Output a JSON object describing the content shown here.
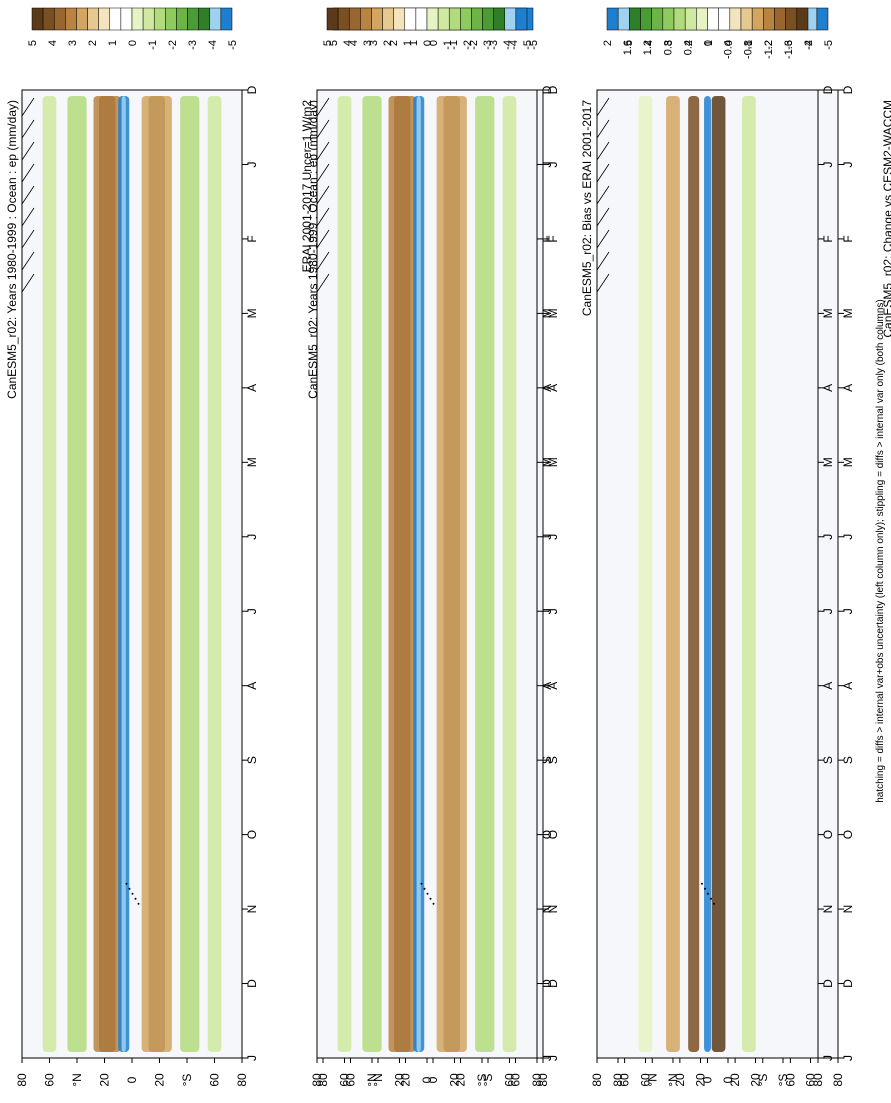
{
  "figure": {
    "footnote": "hatching = diffs > internal var+obs uncertainty (left column only); stippling = diffs > internal var only (both columns)"
  },
  "chart_data": [
    {
      "type": "heatmap",
      "title": "CanESM5_r02: Years 1980-1999 : Ocean : ep (mm/day)",
      "x": [
        "D",
        "J",
        "F",
        "M",
        "A",
        "M",
        "J",
        "J",
        "A",
        "S",
        "O",
        "N",
        "D",
        "J"
      ],
      "y_ticks": [
        "80",
        "60",
        "°N",
        "20",
        "0",
        "20",
        "°S",
        "60",
        "80"
      ],
      "colorbar": [
        "5",
        "4",
        "3",
        "2",
        "1",
        "0",
        "-1",
        "-2",
        "-3",
        "-4",
        "-5"
      ],
      "hatching": true,
      "stippling": true,
      "pattern": "field"
    },
    {
      "type": "heatmap",
      "title": "CanESM5_r02: Years 1980-1999 : Ocean : ep (mm/day)",
      "x": [
        "D",
        "J",
        "F",
        "M",
        "A",
        "M",
        "J",
        "J",
        "A",
        "S",
        "O",
        "N",
        "D",
        "J"
      ],
      "y_ticks": [
        "80",
        "60",
        "°N",
        "20",
        "0",
        "20",
        "°S",
        "60",
        "80"
      ],
      "colorbar": [
        "5",
        "4",
        "3",
        "2",
        "1",
        "0",
        "-1",
        "-2",
        "-3",
        "-4",
        "-5"
      ],
      "hatching": false,
      "stippling": true,
      "pattern": "field"
    },
    {
      "type": "heatmap",
      "title": "ERAI 2001-2017 Uncer=1 W/m2",
      "x": [
        "D",
        "J",
        "F",
        "M",
        "A",
        "M",
        "J",
        "J",
        "A",
        "S",
        "O",
        "N",
        "D",
        "J"
      ],
      "y_ticks": [
        "80",
        "60",
        "°N",
        "20",
        "0",
        "20",
        "°S",
        "60",
        "80"
      ],
      "colorbar": [
        "5",
        "4",
        "3",
        "2",
        "1",
        "0",
        "-1",
        "-2",
        "-3",
        "-4",
        "-5"
      ],
      "hatching": true,
      "stippling": true,
      "pattern": "field"
    },
    {
      "type": "heatmap",
      "title": "CESM2-WACCM",
      "x": [
        "D",
        "J",
        "F",
        "M",
        "A",
        "M",
        "J",
        "J",
        "A",
        "S",
        "O",
        "N",
        "D",
        "J"
      ],
      "y_ticks": [
        "80",
        "60",
        "°N",
        "20",
        "0",
        "20",
        "°S",
        "60",
        "80"
      ],
      "colorbar": [
        "5",
        "4",
        "3",
        "2",
        "1",
        "0",
        "-1",
        "-2",
        "-3",
        "-4",
        "-5"
      ],
      "hatching": false,
      "stippling": true,
      "pattern": "field"
    },
    {
      "type": "heatmap",
      "title": "CanESM5_r02: Bias vs ERAI 2001-2017",
      "x": [
        "D",
        "J",
        "F",
        "M",
        "A",
        "M",
        "J",
        "J",
        "A",
        "S",
        "O",
        "N",
        "D",
        "J"
      ],
      "y_ticks": [
        "80",
        "60",
        "°N",
        "20",
        "0",
        "20",
        "°S",
        "60",
        "80"
      ],
      "colorbar": [
        "2",
        "1.6",
        "1.2",
        "0.8",
        "0.4",
        "0",
        "-0.4",
        "-0.8",
        "-1.2",
        "-1.6",
        "-2"
      ],
      "hatching": true,
      "stippling": true,
      "pattern": "diff"
    },
    {
      "type": "heatmap",
      "title": "CanESM5_r02: Change vs CESM2-WACCM",
      "x": [
        "D",
        "J",
        "F",
        "M",
        "A",
        "M",
        "J",
        "J",
        "A",
        "S",
        "O",
        "N",
        "D",
        "J"
      ],
      "y_ticks": [
        "80",
        "60",
        "°N",
        "20",
        "0",
        "20",
        "°S",
        "60",
        "80"
      ],
      "colorbar": [
        "2",
        "1.6",
        "1.2",
        "0.8",
        "0.4",
        "0",
        "-0.4",
        "-0.8",
        "-1.2",
        "-1.6",
        "-2"
      ],
      "hatching": false,
      "stippling": true,
      "pattern": "diff"
    }
  ]
}
